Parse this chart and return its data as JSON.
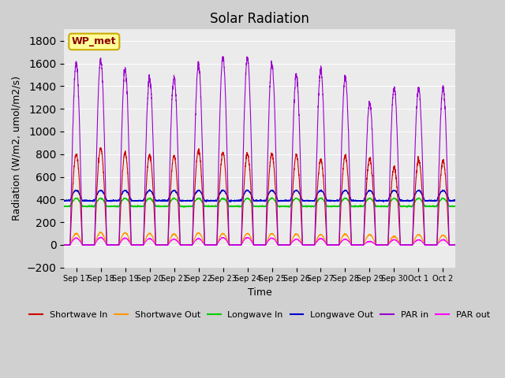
{
  "title": "Solar Radiation",
  "xlabel": "Time",
  "ylabel": "Radiation (W/m2, umol/m2/s)",
  "ylim": [
    -200,
    1900
  ],
  "yticks": [
    -200,
    0,
    200,
    400,
    600,
    800,
    1000,
    1200,
    1400,
    1600,
    1800
  ],
  "x_tick_labels": [
    "Sep 17",
    "Sep 18",
    "Sep 19",
    "Sep 20",
    "Sep 21",
    "Sep 22",
    "Sep 23",
    "Sep 24",
    "Sep 25",
    "Sep 26",
    "Sep 27",
    "Sep 28",
    "Sep 29",
    "Sep 30",
    "Oct 1",
    "Oct 2"
  ],
  "plot_bg_color": "#ebebeb",
  "fig_bg_color": "#d0d0d0",
  "legend_label": "WP_met",
  "series": {
    "shortwave_in": {
      "color": "#cc0000",
      "label": "Shortwave In"
    },
    "shortwave_out": {
      "color": "#ff9900",
      "label": "Shortwave Out"
    },
    "longwave_in": {
      "color": "#00cc00",
      "label": "Longwave In"
    },
    "longwave_out": {
      "color": "#0000cc",
      "label": "Longwave Out"
    },
    "par_in": {
      "color": "#9900cc",
      "label": "PAR in"
    },
    "par_out": {
      "color": "#ff00ff",
      "label": "PAR out"
    }
  },
  "n_days": 16,
  "points_per_day": 200,
  "shortwave_in_peaks": [
    800,
    850,
    810,
    790,
    780,
    830,
    810,
    800,
    800,
    790,
    750,
    780,
    760,
    680,
    750,
    740
  ],
  "shortwave_out_peaks": [
    100,
    110,
    105,
    100,
    95,
    105,
    100,
    100,
    100,
    95,
    90,
    95,
    90,
    75,
    90,
    85
  ],
  "longwave_in_base": 340,
  "longwave_in_peak": 410,
  "longwave_out_base": 390,
  "longwave_out_peak": 480,
  "par_in_peaks": [
    1600,
    1630,
    1550,
    1470,
    1480,
    1590,
    1650,
    1650,
    1600,
    1490,
    1540,
    1470,
    1250,
    1380,
    1380,
    1380
  ],
  "par_out_peaks": [
    60,
    65,
    60,
    55,
    50,
    55,
    65,
    65,
    60,
    50,
    55,
    50,
    30,
    45,
    45,
    45
  ]
}
